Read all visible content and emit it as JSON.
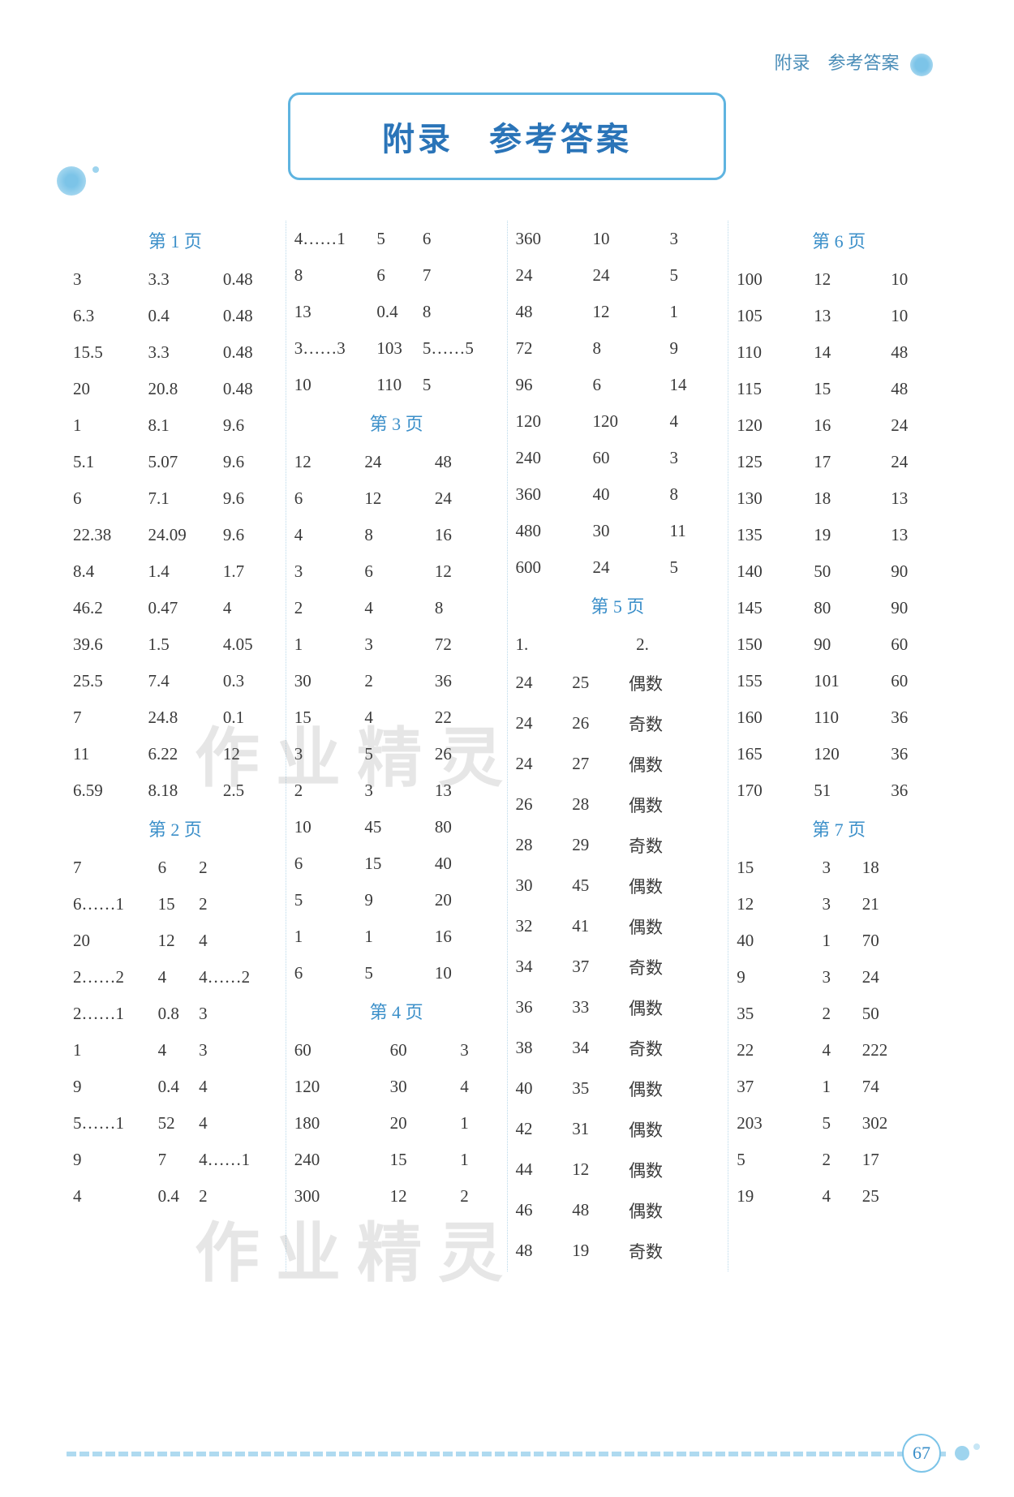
{
  "header": {
    "running_title": "附录　参考答案"
  },
  "banner": {
    "title": "附录　参考答案"
  },
  "watermark_text": "作业精灵",
  "page_number": "67",
  "labels": {
    "page1": "第 1 页",
    "page2": "第 2 页",
    "page3": "第 3 页",
    "page4": "第 4 页",
    "page5": "第 5 页",
    "page6": "第 6 页",
    "page7": "第 7 页",
    "sub1": "1.",
    "sub2": "2."
  },
  "col1": {
    "page1": [
      [
        "3",
        "3.3",
        "0.48"
      ],
      [
        "6.3",
        "0.4",
        "0.48"
      ],
      [
        "15.5",
        "3.3",
        "0.48"
      ],
      [
        "20",
        "20.8",
        "0.48"
      ],
      [
        "1",
        "8.1",
        "9.6"
      ],
      [
        "5.1",
        "5.07",
        "9.6"
      ],
      [
        "6",
        "7.1",
        "9.6"
      ],
      [
        "22.38",
        "24.09",
        "9.6"
      ],
      [
        "8.4",
        "1.4",
        "1.7"
      ],
      [
        "46.2",
        "0.47",
        "4"
      ],
      [
        "39.6",
        "1.5",
        "4.05"
      ],
      [
        "25.5",
        "7.4",
        "0.3"
      ],
      [
        "7",
        "24.8",
        "0.1"
      ],
      [
        "11",
        "6.22",
        "12"
      ],
      [
        "6.59",
        "8.18",
        "2.5"
      ]
    ],
    "page2": [
      [
        "7",
        "6",
        "2"
      ],
      [
        "6……1",
        "15",
        "2"
      ],
      [
        "20",
        "12",
        "4"
      ],
      [
        "2……2",
        "4",
        "4……2"
      ],
      [
        "2……1",
        "0.8",
        "3"
      ],
      [
        "1",
        "4",
        "3"
      ],
      [
        "9",
        "0.4",
        "4"
      ],
      [
        "5……1",
        "52",
        "4"
      ],
      [
        "9",
        "7",
        "4……1"
      ],
      [
        "4",
        "0.4",
        "2"
      ]
    ]
  },
  "col2": {
    "pre": [
      [
        "4……1",
        "5",
        "6"
      ],
      [
        "8",
        "6",
        "7"
      ],
      [
        "13",
        "0.4",
        "8"
      ],
      [
        "3……3",
        "103",
        "5……5"
      ],
      [
        "10",
        "110",
        "5"
      ]
    ],
    "page3": [
      [
        "12",
        "24",
        "48"
      ],
      [
        "6",
        "12",
        "24"
      ],
      [
        "4",
        "8",
        "16"
      ],
      [
        "3",
        "6",
        "12"
      ],
      [
        "2",
        "4",
        "8"
      ],
      [
        "1",
        "3",
        "72"
      ],
      [
        "30",
        "2",
        "36"
      ],
      [
        "15",
        "4",
        "22"
      ],
      [
        "3",
        "5",
        "26"
      ],
      [
        "2",
        "3",
        "13"
      ],
      [
        "10",
        "45",
        "80"
      ],
      [
        "6",
        "15",
        "40"
      ],
      [
        "5",
        "9",
        "20"
      ],
      [
        "1",
        "1",
        "16"
      ],
      [
        "6",
        "5",
        "10"
      ]
    ],
    "page4": [
      [
        "60",
        "60",
        "3"
      ],
      [
        "120",
        "30",
        "4"
      ],
      [
        "180",
        "20",
        "1"
      ],
      [
        "240",
        "15",
        "1"
      ],
      [
        "300",
        "12",
        "2"
      ]
    ]
  },
  "col3": {
    "pre": [
      [
        "360",
        "10",
        "3"
      ],
      [
        "24",
        "24",
        "5"
      ],
      [
        "48",
        "12",
        "1"
      ],
      [
        "72",
        "8",
        "9"
      ],
      [
        "96",
        "6",
        "14"
      ],
      [
        "120",
        "120",
        "4"
      ],
      [
        "240",
        "60",
        "3"
      ],
      [
        "360",
        "40",
        "8"
      ],
      [
        "480",
        "30",
        "11"
      ],
      [
        "600",
        "24",
        "5"
      ]
    ],
    "page5": [
      [
        "24",
        "25",
        "偶数"
      ],
      [
        "24",
        "26",
        "奇数"
      ],
      [
        "24",
        "27",
        "偶数"
      ],
      [
        "26",
        "28",
        "偶数"
      ],
      [
        "28",
        "29",
        "奇数"
      ],
      [
        "30",
        "45",
        "偶数"
      ],
      [
        "32",
        "41",
        "偶数"
      ],
      [
        "34",
        "37",
        "奇数"
      ],
      [
        "36",
        "33",
        "偶数"
      ],
      [
        "38",
        "34",
        "奇数"
      ],
      [
        "40",
        "35",
        "偶数"
      ],
      [
        "42",
        "31",
        "偶数"
      ],
      [
        "44",
        "12",
        "偶数"
      ],
      [
        "46",
        "48",
        "偶数"
      ],
      [
        "48",
        "19",
        "奇数"
      ]
    ]
  },
  "col4": {
    "pre": [
      [
        "100",
        "12",
        "10"
      ],
      [
        "105",
        "13",
        "10"
      ],
      [
        "110",
        "14",
        "48"
      ],
      [
        "115",
        "15",
        "48"
      ],
      [
        "120",
        "16",
        "24"
      ],
      [
        "125",
        "17",
        "24"
      ],
      [
        "130",
        "18",
        "13"
      ],
      [
        "135",
        "19",
        "13"
      ],
      [
        "140",
        "50",
        "90"
      ],
      [
        "145",
        "80",
        "90"
      ],
      [
        "150",
        "90",
        "60"
      ],
      [
        "155",
        "101",
        "60"
      ],
      [
        "160",
        "110",
        "36"
      ],
      [
        "165",
        "120",
        "36"
      ],
      [
        "170",
        "51",
        "36"
      ]
    ],
    "page7": [
      [
        "15",
        "3",
        "18"
      ],
      [
        "12",
        "3",
        "21"
      ],
      [
        "40",
        "1",
        "70"
      ],
      [
        "9",
        "3",
        "24"
      ],
      [
        "35",
        "2",
        "50"
      ],
      [
        "22",
        "4",
        "222"
      ],
      [
        "37",
        "1",
        "74"
      ],
      [
        "203",
        "5",
        "302"
      ],
      [
        "5",
        "2",
        "17"
      ],
      [
        "19",
        "4",
        "25"
      ]
    ]
  },
  "style": {
    "accent_color": "#5fb4e0",
    "heading_color": "#3b8fc9",
    "text_color": "#3a3a3a",
    "background": "#ffffff",
    "body_fontsize_pt": 16,
    "heading_fontsize_pt": 17,
    "banner_fontsize_pt": 30
  }
}
